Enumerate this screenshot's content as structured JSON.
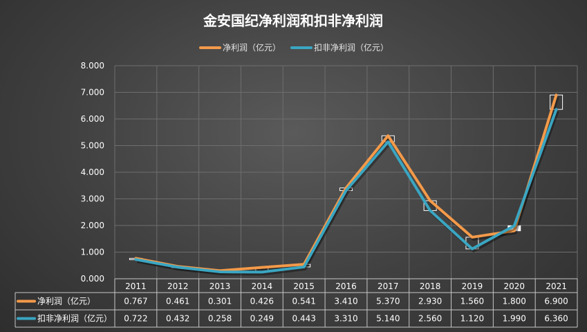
{
  "chart_data": {
    "type": "line",
    "title": "金安国纪净利润和扣非净利润",
    "categories": [
      "2011",
      "2012",
      "2013",
      "2014",
      "2015",
      "2016",
      "2017",
      "2018",
      "2019",
      "2020",
      "2021"
    ],
    "ylim": [
      0,
      8
    ],
    "yticks": [
      "0.000",
      "1.000",
      "2.000",
      "3.000",
      "4.000",
      "5.000",
      "6.000",
      "7.000",
      "8.000"
    ],
    "grid": true,
    "legend_position": "top",
    "series": [
      {
        "name": "净利润（亿元）",
        "color": "#f39a4a",
        "values": [
          0.767,
          0.461,
          0.301,
          0.426,
          0.541,
          3.41,
          5.37,
          2.93,
          1.56,
          1.8,
          6.9
        ],
        "labels": [
          "0.767",
          "0.461",
          "0.301",
          "0.426",
          "0.541",
          "3.410",
          "5.370",
          "2.930",
          "1.560",
          "1.800",
          "6.900"
        ]
      },
      {
        "name": "扣非净利润（亿元）",
        "color": "#3aa6c2",
        "values": [
          0.722,
          0.432,
          0.258,
          0.249,
          0.443,
          3.31,
          5.14,
          2.56,
          1.12,
          1.99,
          6.36
        ],
        "labels": [
          "0.722",
          "0.432",
          "0.258",
          "0.249",
          "0.443",
          "3.310",
          "5.140",
          "2.560",
          "1.120",
          "1.990",
          "6.360"
        ]
      }
    ]
  }
}
